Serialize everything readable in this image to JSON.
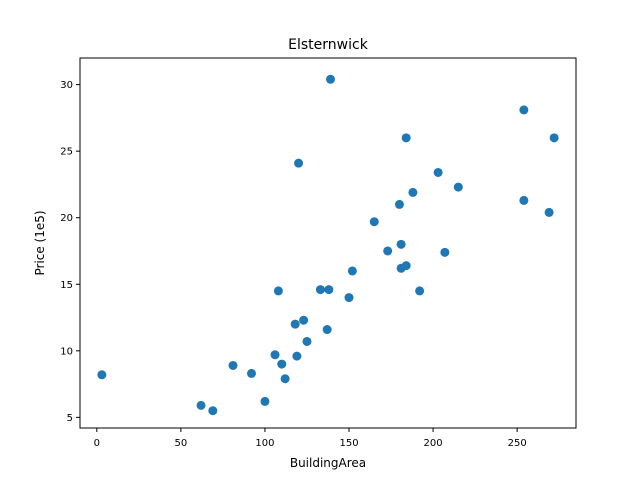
{
  "chart_data": {
    "type": "scatter",
    "title": "Elsternwick",
    "xlabel": "BuildingArea",
    "ylabel": "Price (1e5)",
    "xlim": [
      -10,
      285
    ],
    "ylim": [
      4.2,
      32
    ],
    "xticks": [
      0,
      50,
      100,
      150,
      200,
      250
    ],
    "yticks": [
      5,
      10,
      15,
      20,
      25,
      30
    ],
    "grid": false,
    "marker_color": "#1f77b4",
    "points": [
      {
        "x": 3,
        "y": 8.2
      },
      {
        "x": 62,
        "y": 5.9
      },
      {
        "x": 69,
        "y": 5.5
      },
      {
        "x": 81,
        "y": 8.9
      },
      {
        "x": 92,
        "y": 8.3
      },
      {
        "x": 100,
        "y": 6.2
      },
      {
        "x": 106,
        "y": 9.7
      },
      {
        "x": 108,
        "y": 14.5
      },
      {
        "x": 110,
        "y": 9.0
      },
      {
        "x": 112,
        "y": 7.9
      },
      {
        "x": 118,
        "y": 12.0
      },
      {
        "x": 119,
        "y": 9.6
      },
      {
        "x": 120,
        "y": 24.1
      },
      {
        "x": 123,
        "y": 12.3
      },
      {
        "x": 125,
        "y": 10.7
      },
      {
        "x": 133,
        "y": 14.6
      },
      {
        "x": 137,
        "y": 11.6
      },
      {
        "x": 138,
        "y": 14.6
      },
      {
        "x": 139,
        "y": 30.4
      },
      {
        "x": 150,
        "y": 14.0
      },
      {
        "x": 152,
        "y": 16.0
      },
      {
        "x": 165,
        "y": 19.7
      },
      {
        "x": 173,
        "y": 17.5
      },
      {
        "x": 180,
        "y": 21.0
      },
      {
        "x": 181,
        "y": 18.0
      },
      {
        "x": 181,
        "y": 16.2
      },
      {
        "x": 184,
        "y": 16.4
      },
      {
        "x": 184,
        "y": 26.0
      },
      {
        "x": 188,
        "y": 21.9
      },
      {
        "x": 192,
        "y": 14.5
      },
      {
        "x": 203,
        "y": 23.4
      },
      {
        "x": 207,
        "y": 17.4
      },
      {
        "x": 215,
        "y": 22.3
      },
      {
        "x": 254,
        "y": 28.1
      },
      {
        "x": 254,
        "y": 21.3
      },
      {
        "x": 269,
        "y": 20.4
      },
      {
        "x": 272,
        "y": 26.0
      }
    ]
  }
}
